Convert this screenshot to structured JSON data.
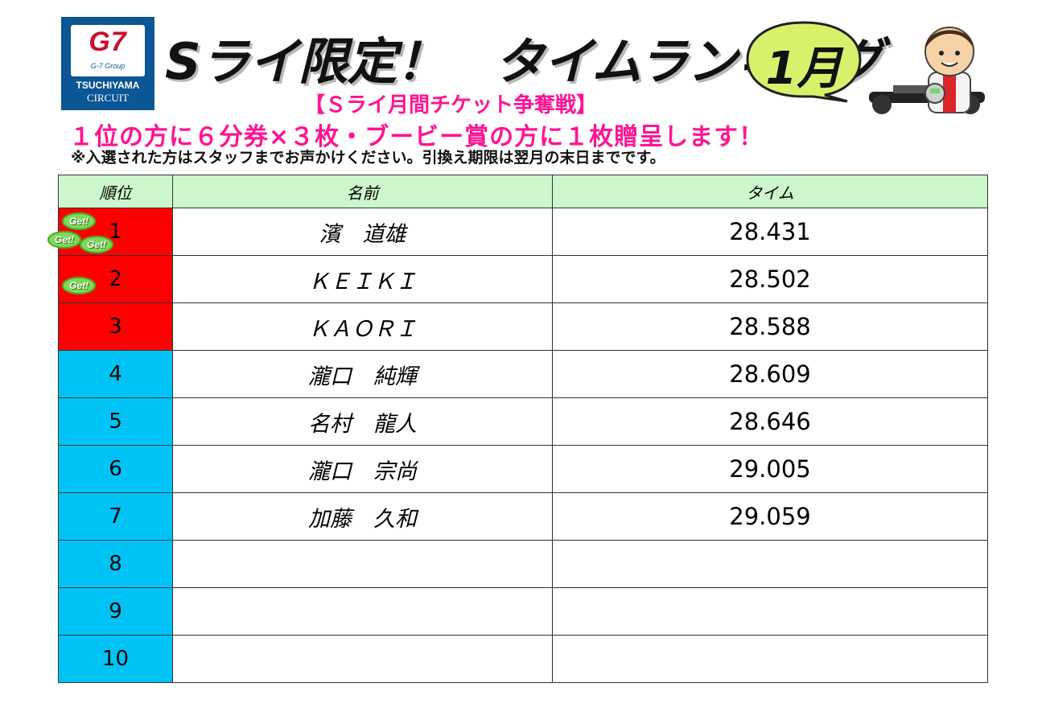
{
  "logo": {
    "brand": "G7",
    "group": "G-7 Group",
    "line1": "TSUCHIYAMA",
    "line2": "CIRCUIT"
  },
  "header": {
    "title": "Sライ限定！　タイムランキング",
    "month": "1月",
    "subtitle": "【Ｓライ月間チケット争奪戦】",
    "prize": "１位の方に６分券×３枚・ブービー賞の方に１枚贈呈します！",
    "note": "※入選された方はスタッフまでお声かけください。引換え期限は翌月の末日までです。"
  },
  "colors": {
    "prize_rank": "#ff0000",
    "other_rank": "#00c3f5",
    "header_bg": "#ccf7cc",
    "highlight_text": "#ff1493",
    "badge": "#7ed957"
  },
  "table": {
    "headers": [
      "順位",
      "名前",
      "タイム"
    ],
    "badge_label": "Get!",
    "rows": [
      {
        "rank": "1",
        "name": "濱　道雄",
        "time": "28.431",
        "badges": 3
      },
      {
        "rank": "2",
        "name": "ＫＥＩＫＩ",
        "time": "28.502",
        "badges": 1
      },
      {
        "rank": "3",
        "name": "ＫＡＯＲＩ",
        "time": "28.588",
        "badges": 0
      },
      {
        "rank": "4",
        "name": "瀧口　純輝",
        "time": "28.609",
        "badges": 0
      },
      {
        "rank": "5",
        "name": "名村　龍人",
        "time": "28.646",
        "badges": 0
      },
      {
        "rank": "6",
        "name": "瀧口　宗尚",
        "time": "29.005",
        "badges": 0
      },
      {
        "rank": "7",
        "name": "加藤　久和",
        "time": "29.059",
        "badges": 0
      },
      {
        "rank": "8",
        "name": "",
        "time": "",
        "badges": 0
      },
      {
        "rank": "9",
        "name": "",
        "time": "",
        "badges": 0
      },
      {
        "rank": "10",
        "name": "",
        "time": "",
        "badges": 0
      }
    ]
  }
}
